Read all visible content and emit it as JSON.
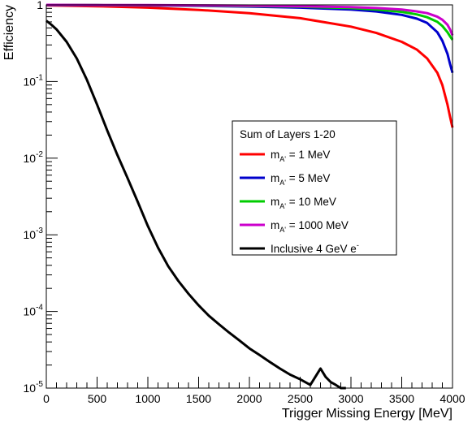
{
  "chart_data": {
    "type": "line",
    "xlabel": "Trigger Missing Energy [MeV]",
    "ylabel": "Efficiency",
    "xlim": [
      0,
      4000
    ],
    "ylim": [
      1e-05,
      1
    ],
    "yscale": "log",
    "x_ticks": [
      0,
      500,
      1000,
      1500,
      2000,
      2500,
      3000,
      3500,
      4000
    ],
    "x_tick_labels": [
      "0",
      "500",
      "1000",
      "1500",
      "2000",
      "2500",
      "3000",
      "3500",
      "4000"
    ],
    "y_ticks": [
      1e-05,
      0.0001,
      0.001,
      0.01,
      0.1,
      1
    ],
    "y_tick_labels": [
      {
        "base": "10",
        "exp": "-5"
      },
      {
        "base": "10",
        "exp": "-4"
      },
      {
        "base": "10",
        "exp": "-3"
      },
      {
        "base": "10",
        "exp": "-2"
      },
      {
        "base": "10",
        "exp": "-1"
      },
      {
        "base": "1",
        "exp": ""
      }
    ],
    "grid": false,
    "legend": {
      "title": "Sum of Layers 1-20",
      "position": "right-middle",
      "entries": [
        {
          "prefix": "m",
          "sub": "A'",
          "suffix": " = 1 MeV",
          "color": "#ff0000"
        },
        {
          "prefix": "m",
          "sub": "A'",
          "suffix": " = 5 MeV",
          "color": "#0000cc"
        },
        {
          "prefix": "m",
          "sub": "A'",
          "suffix": " = 10 MeV",
          "color": "#00cc00"
        },
        {
          "prefix": "m",
          "sub": "A'",
          "suffix": " = 1000 MeV",
          "color": "#cc00cc"
        },
        {
          "prefix": "Inclusive 4 GeV e",
          "sup": "-",
          "suffix": "",
          "color": "#000000"
        }
      ]
    },
    "series": [
      {
        "color": "#ff0000",
        "x": [
          0,
          500,
          1000,
          1500,
          2000,
          2500,
          3000,
          3250,
          3500,
          3650,
          3750,
          3850,
          3900,
          3950,
          3975,
          4000
        ],
        "y": [
          0.985,
          0.96,
          0.92,
          0.86,
          0.78,
          0.67,
          0.52,
          0.43,
          0.33,
          0.26,
          0.2,
          0.13,
          0.09,
          0.05,
          0.035,
          0.025
        ]
      },
      {
        "color": "#0000cc",
        "x": [
          0,
          500,
          1000,
          1500,
          2000,
          2500,
          3000,
          3250,
          3500,
          3650,
          3750,
          3850,
          3900,
          3950,
          3975,
          4000
        ],
        "y": [
          0.995,
          0.99,
          0.98,
          0.97,
          0.95,
          0.92,
          0.87,
          0.82,
          0.74,
          0.66,
          0.58,
          0.44,
          0.34,
          0.23,
          0.17,
          0.13
        ]
      },
      {
        "color": "#00cc00",
        "x": [
          0,
          500,
          1000,
          1500,
          2000,
          2500,
          3000,
          3250,
          3500,
          3650,
          3750,
          3850,
          3900,
          3950,
          3975,
          4000
        ],
        "y": [
          0.997,
          0.993,
          0.987,
          0.978,
          0.965,
          0.945,
          0.91,
          0.87,
          0.81,
          0.75,
          0.69,
          0.6,
          0.53,
          0.44,
          0.39,
          0.35
        ]
      },
      {
        "color": "#cc00cc",
        "x": [
          0,
          500,
          1000,
          1500,
          2000,
          2500,
          3000,
          3250,
          3500,
          3650,
          3750,
          3850,
          3900,
          3950,
          3975,
          4000
        ],
        "y": [
          0.999,
          0.996,
          0.992,
          0.985,
          0.975,
          0.96,
          0.935,
          0.91,
          0.87,
          0.82,
          0.78,
          0.7,
          0.64,
          0.55,
          0.48,
          0.4
        ]
      },
      {
        "color": "#000000",
        "x": [
          0,
          50,
          100,
          200,
          300,
          400,
          500,
          600,
          700,
          800,
          900,
          1000,
          1100,
          1200,
          1300,
          1400,
          1500,
          1600,
          1700,
          1800,
          1900,
          2000,
          2100,
          2200,
          2300,
          2400,
          2500,
          2600,
          2700,
          2750,
          2800,
          2850,
          2900,
          2950
        ],
        "y": [
          0.62,
          0.55,
          0.48,
          0.33,
          0.2,
          0.105,
          0.05,
          0.023,
          0.011,
          0.0055,
          0.0027,
          0.0013,
          0.00068,
          0.00039,
          0.00025,
          0.00017,
          0.00012,
          8.8e-05,
          6.8e-05,
          5.3e-05,
          4.2e-05,
          3.3e-05,
          2.7e-05,
          2.2e-05,
          1.8e-05,
          1.5e-05,
          1.3e-05,
          1.1e-05,
          1.8e-05,
          1.4e-05,
          1.2e-05,
          1.1e-05,
          1e-05,
          1e-05
        ]
      }
    ]
  }
}
